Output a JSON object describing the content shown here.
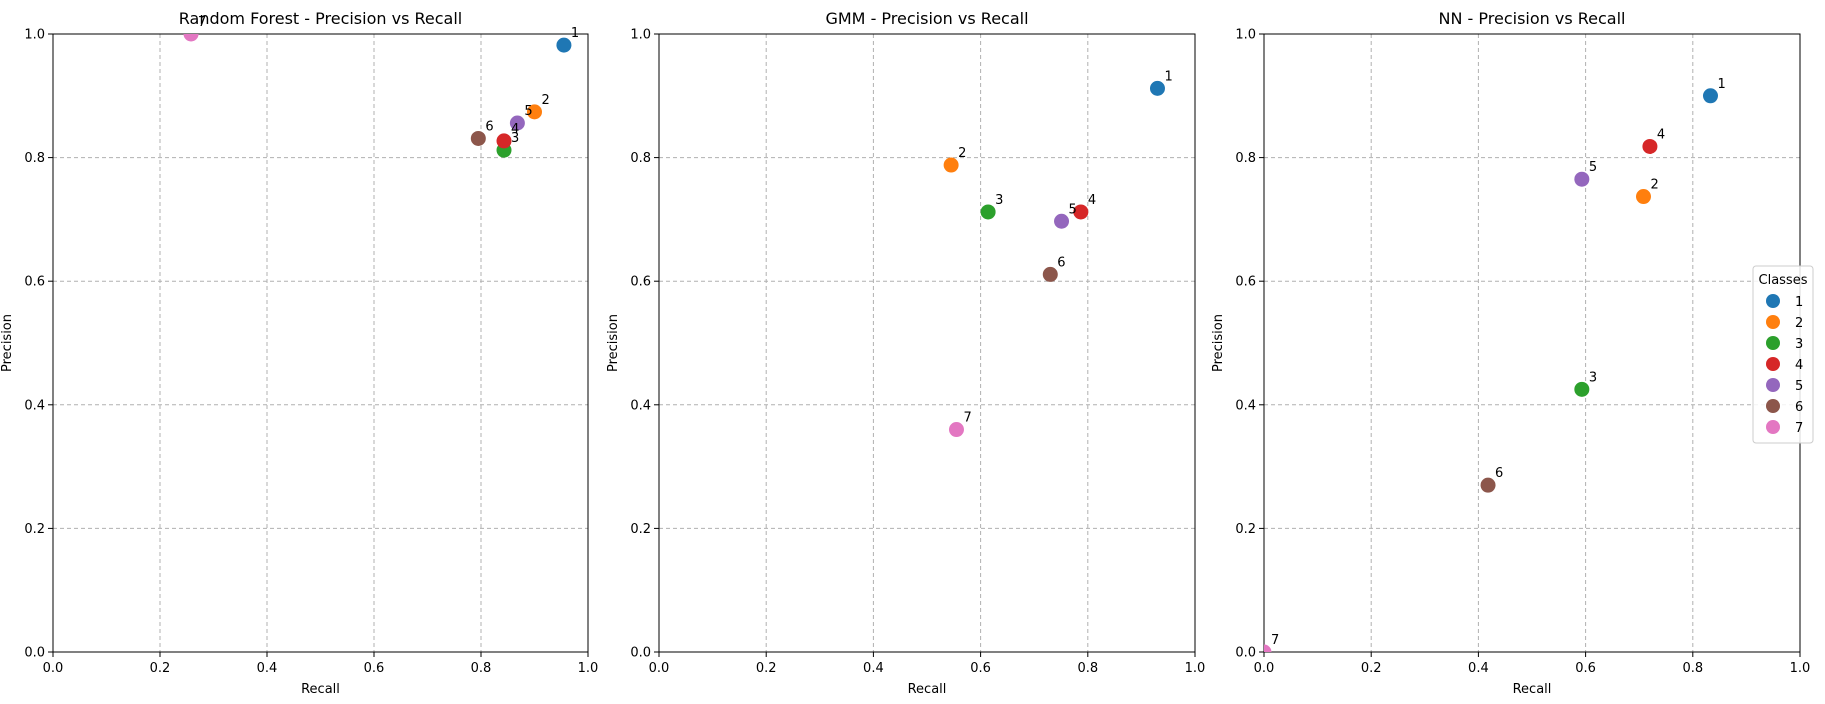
{
  "chart_data": [
    {
      "type": "scatter",
      "title": "Random Forest - Precision vs Recall",
      "xlabel": "Recall",
      "ylabel": "Precision",
      "xlim": [
        0,
        1
      ],
      "ylim": [
        0,
        1
      ],
      "grid": true,
      "x_ticks": [
        "0.0",
        "0.2",
        "0.4",
        "0.6",
        "0.8",
        "1.0"
      ],
      "y_ticks": [
        "0.0",
        "0.2",
        "0.4",
        "0.6",
        "0.8",
        "1.0"
      ],
      "points": [
        {
          "label": "1",
          "x": 0.955,
          "y": 0.982
        },
        {
          "label": "2",
          "x": 0.9,
          "y": 0.874
        },
        {
          "label": "3",
          "x": 0.843,
          "y": 0.812
        },
        {
          "label": "4",
          "x": 0.843,
          "y": 0.827
        },
        {
          "label": "5",
          "x": 0.868,
          "y": 0.856
        },
        {
          "label": "6",
          "x": 0.795,
          "y": 0.831
        },
        {
          "label": "7",
          "x": 0.258,
          "y": 1.0
        }
      ]
    },
    {
      "type": "scatter",
      "title": "GMM - Precision vs Recall",
      "xlabel": "Recall",
      "ylabel": "Precision",
      "xlim": [
        0,
        1
      ],
      "ylim": [
        0,
        1
      ],
      "grid": true,
      "x_ticks": [
        "0.0",
        "0.2",
        "0.4",
        "0.6",
        "0.8",
        "1.0"
      ],
      "y_ticks": [
        "0.0",
        "0.2",
        "0.4",
        "0.6",
        "0.8",
        "1.0"
      ],
      "points": [
        {
          "label": "1",
          "x": 0.93,
          "y": 0.912
        },
        {
          "label": "2",
          "x": 0.545,
          "y": 0.788
        },
        {
          "label": "3",
          "x": 0.614,
          "y": 0.712
        },
        {
          "label": "4",
          "x": 0.787,
          "y": 0.712
        },
        {
          "label": "5",
          "x": 0.751,
          "y": 0.697
        },
        {
          "label": "6",
          "x": 0.73,
          "y": 0.611
        },
        {
          "label": "7",
          "x": 0.555,
          "y": 0.36
        }
      ]
    },
    {
      "type": "scatter",
      "title": "NN - Precision vs Recall",
      "xlabel": "Recall",
      "ylabel": "Precision",
      "xlim": [
        0,
        1
      ],
      "ylim": [
        0,
        1
      ],
      "grid": true,
      "x_ticks": [
        "0.0",
        "0.2",
        "0.4",
        "0.6",
        "0.8",
        "1.0"
      ],
      "y_ticks": [
        "0.0",
        "0.2",
        "0.4",
        "0.6",
        "0.8",
        "1.0"
      ],
      "points": [
        {
          "label": "1",
          "x": 0.833,
          "y": 0.9
        },
        {
          "label": "2",
          "x": 0.708,
          "y": 0.737
        },
        {
          "label": "3",
          "x": 0.593,
          "y": 0.425
        },
        {
          "label": "4",
          "x": 0.72,
          "y": 0.818
        },
        {
          "label": "5",
          "x": 0.593,
          "y": 0.765
        },
        {
          "label": "6",
          "x": 0.418,
          "y": 0.27
        },
        {
          "label": "7",
          "x": 0.0,
          "y": 0.0
        }
      ]
    }
  ],
  "legend": {
    "title": "Classes",
    "placement": "right",
    "entries": [
      {
        "label": "1",
        "color": "#1f77b4"
      },
      {
        "label": "2",
        "color": "#ff7f0e"
      },
      {
        "label": "3",
        "color": "#2ca02c"
      },
      {
        "label": "4",
        "color": "#d62728"
      },
      {
        "label": "5",
        "color": "#9467bd"
      },
      {
        "label": "6",
        "color": "#8c564b"
      },
      {
        "label": "7",
        "color": "#e377c2"
      }
    ]
  }
}
